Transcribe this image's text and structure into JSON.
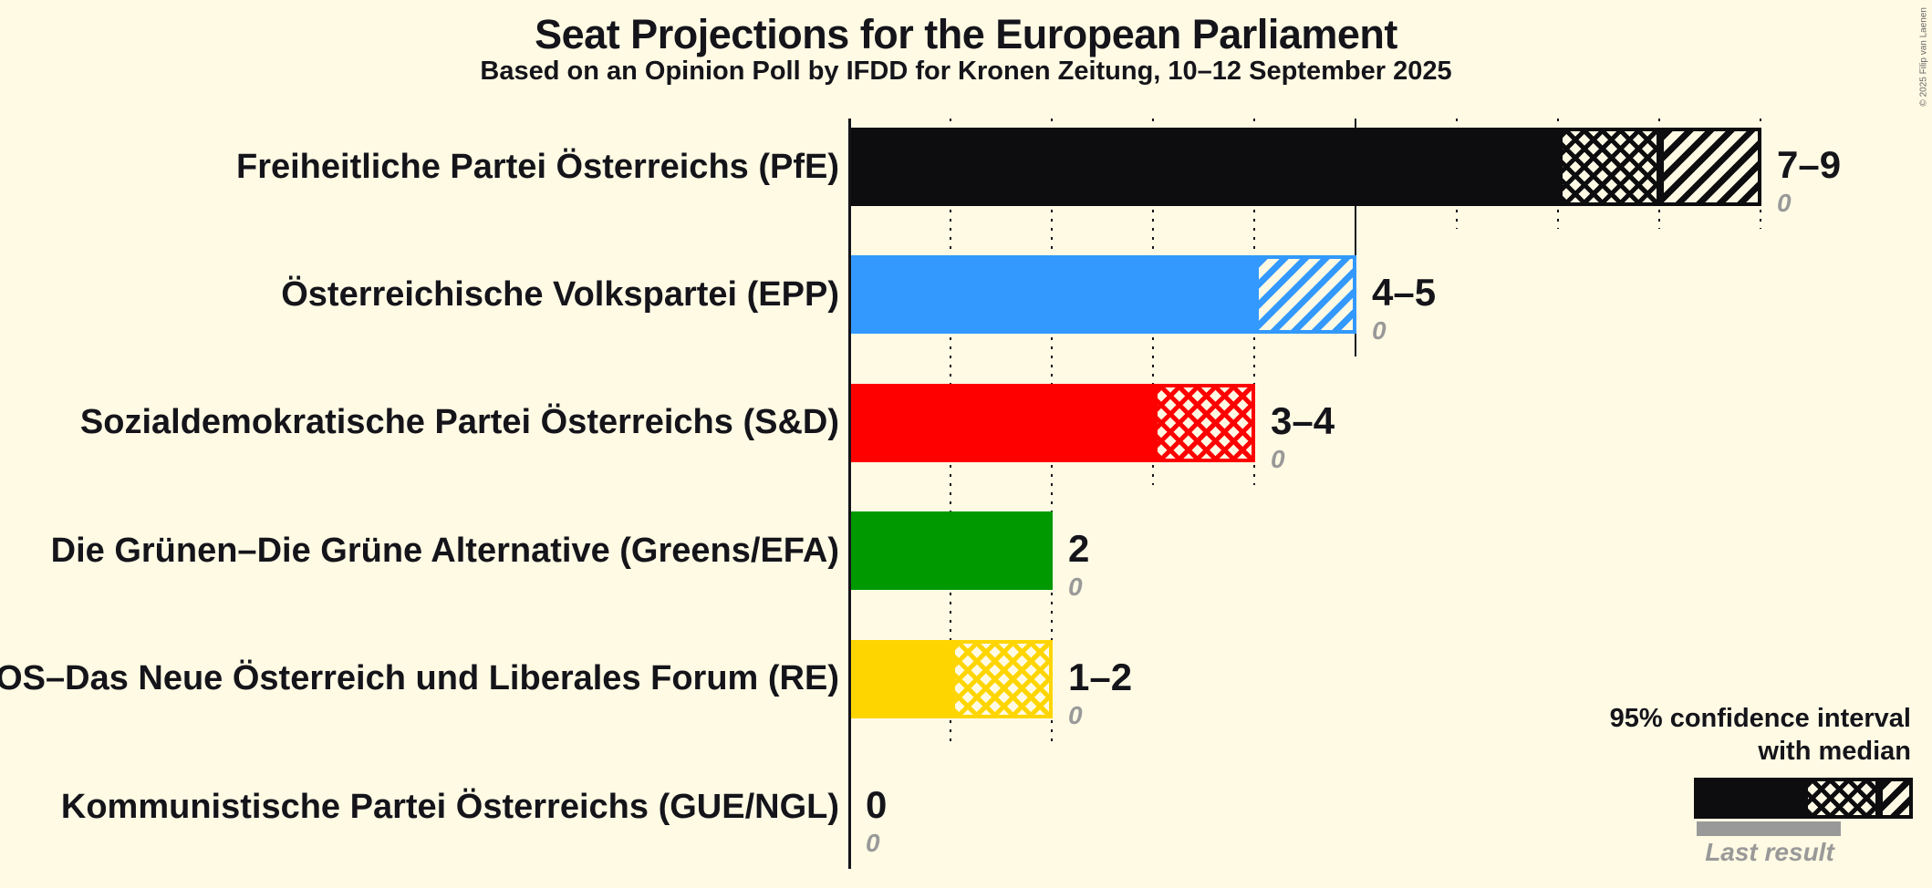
{
  "title": "Seat Projections for the European Parliament",
  "subtitle": "Based on an Opinion Poll by IFDD for Kronen Zeitung, 10–12 September 2025",
  "copyright": "© 2025 Filip van Laenen",
  "legend": {
    "ci_line1": "95% confidence interval",
    "ci_line2": "with median",
    "last_result": "Last result"
  },
  "colors": {
    "background": "#FFFAE4",
    "text": "#14141A",
    "muted_gray": "#999999"
  },
  "chart_data": {
    "type": "bar",
    "orientation": "horizontal",
    "unit": "seats",
    "x_axis": {
      "min": 0,
      "max": 9,
      "grid_interval": 1,
      "major_line_at": 5,
      "grid": "dotted"
    },
    "parties": [
      {
        "label": "Freiheitliche Partei Österreichs (PfE)",
        "ci_low": 7,
        "median": 8,
        "ci_high": 9,
        "value_label": "7–9",
        "last_result": 0,
        "color": "#0D0D0F"
      },
      {
        "label": "Österreichische Volkspartei (EPP)",
        "ci_low": 4,
        "median": 4,
        "ci_high": 5,
        "value_label": "4–5",
        "last_result": 0,
        "color": "#3399FF"
      },
      {
        "label": "Sozialdemokratische Partei Österreichs (S&D)",
        "ci_low": 3,
        "median": 4,
        "ci_high": 4,
        "value_label": "3–4",
        "last_result": 0,
        "color": "#FF0000"
      },
      {
        "label": "Die Grünen–Die Grüne Alternative (Greens/EFA)",
        "ci_low": 2,
        "median": 2,
        "ci_high": 2,
        "value_label": "2",
        "last_result": 0,
        "color": "#009900"
      },
      {
        "label": "NEOS–Das Neue Österreich und Liberales Forum (RE)",
        "ci_low": 1,
        "median": 2,
        "ci_high": 2,
        "value_label": "1–2",
        "last_result": 0,
        "color": "#FFD500"
      },
      {
        "label": "Kommunistische Partei Österreichs (GUE/NGL)",
        "ci_low": 0,
        "median": 0,
        "ci_high": 0,
        "value_label": "0",
        "last_result": 0,
        "color": "#0D0D0F"
      }
    ]
  }
}
